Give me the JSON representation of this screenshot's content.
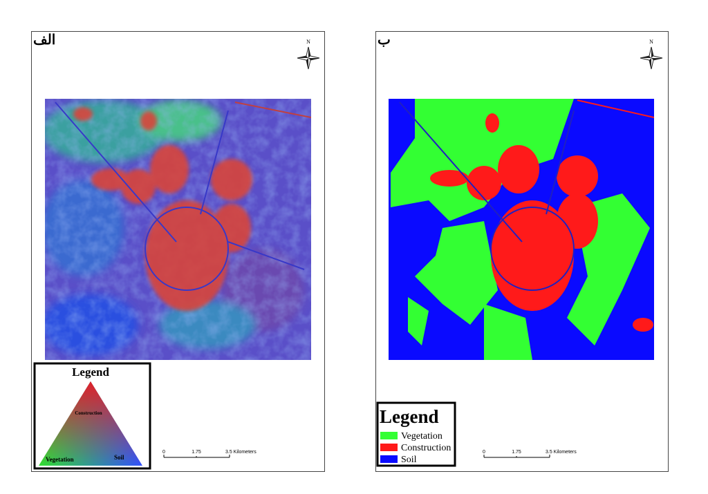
{
  "panels": [
    {
      "label": "الف",
      "north": "N",
      "legend": {
        "title": "Legend",
        "labels": [
          "Construction",
          "Vegetation",
          "Soil"
        ]
      },
      "scale": [
        "0",
        "1.75",
        "3.5 Kilometers"
      ]
    },
    {
      "label": "ب",
      "north": "N",
      "legend": {
        "title": "Legend",
        "items": [
          {
            "name": "Vegetation",
            "color": "#33ff33"
          },
          {
            "name": "Construction",
            "color": "#ff1a1a"
          },
          {
            "name": "Soil",
            "color": "#0a0aff"
          }
        ]
      },
      "scale": [
        "0",
        "1.75",
        "3.5 Kilometers"
      ]
    }
  ]
}
